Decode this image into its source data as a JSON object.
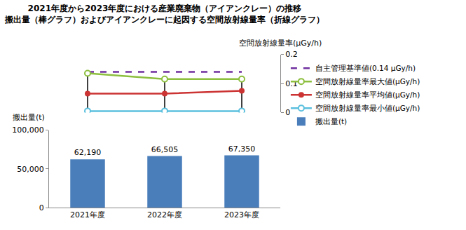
{
  "chart_data": {
    "type": "bar_line",
    "title": "2021年度から2023年度における産業廃棄物（アイアンクレー）の推移",
    "subtitle": "搬出量（棒グラフ）およびアイアンクレーに起因する空間放射線量率（折線グラフ）",
    "ylabel": "搬出量(t)",
    "y2label": "空間放射線量率(μGy/h)",
    "categories": [
      "2021年度",
      "2022年度",
      "2023年度"
    ],
    "ylim": [
      0,
      100000
    ],
    "yticks": [
      0,
      {
        "value": 50000,
        "label": "50,000"
      },
      {
        "value": 100000,
        "label": "100,000"
      }
    ],
    "y2lim": [
      0,
      0.2
    ],
    "y2ticks": [
      0,
      0.1,
      0.2
    ],
    "grid": false,
    "legend": "right",
    "series": [
      {
        "name": "自主管理基準値(0.14 μGy/h)",
        "type": "line",
        "axis": "y2",
        "color": "#7030a0",
        "line_style": "dashed",
        "marker": "none",
        "values": [
          0.14,
          0.14,
          0.14
        ]
      },
      {
        "name": "空間放射線量率最大値(μGy/h)",
        "type": "line",
        "axis": "y2",
        "color": "#8dbf3f",
        "line_style": "solid",
        "marker": "open_circle",
        "values": [
          0.135,
          0.115,
          0.115
        ]
      },
      {
        "name": "空間放射線量率平均値(μGy/h)",
        "type": "line",
        "axis": "y2",
        "color": "#cc3333",
        "line_style": "solid",
        "marker": "circle",
        "values": [
          0.065,
          0.065,
          0.075
        ]
      },
      {
        "name": "空間放射線量率最小値(μGy/h)",
        "type": "line",
        "axis": "y2",
        "color": "#5bc0de",
        "line_style": "solid",
        "marker": "open_circle",
        "values": [
          0.005,
          0.005,
          0.005
        ]
      },
      {
        "name": "搬出量(t)",
        "type": "bar",
        "axis": "y",
        "color": "#4a7ebb",
        "data_labels": true,
        "values": [
          62190,
          66505,
          67350
        ],
        "value_labels": [
          "62,190",
          "66,505",
          "67,350"
        ]
      }
    ]
  }
}
